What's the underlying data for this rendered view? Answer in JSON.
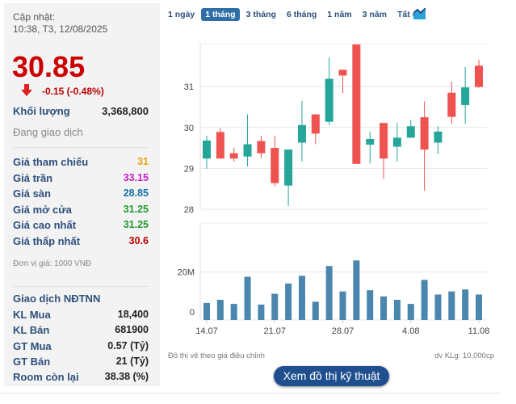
{
  "summary": {
    "update_label": "Cập nhật:",
    "update_time": "10:38, T3, 12/08/2025",
    "price": "30.85",
    "change": "-0.15 (-0.48%)",
    "volume_label": "Khối lượng",
    "volume": "3,368,800",
    "status": "Đang giao dịch"
  },
  "prices": [
    {
      "label": "Giá tham chiếu",
      "value": "31",
      "color": "#e8a317"
    },
    {
      "label": "Giá trần",
      "value": "33.15",
      "color": "#c51fc5"
    },
    {
      "label": "Giá sàn",
      "value": "28.85",
      "color": "#1b6fa8"
    },
    {
      "label": "Giá mở cửa",
      "value": "31.25",
      "color": "#1f9a2f"
    },
    {
      "label": "Giá cao nhất",
      "value": "31.25",
      "color": "#1f9a2f"
    },
    {
      "label": "Giá thấp nhất",
      "value": "30.6",
      "color": "#c00000"
    }
  ],
  "unit_note": "Đơn vị giá: 1000 VNĐ",
  "foreign": {
    "title": "Giao dịch NĐTNN",
    "rows": [
      {
        "label": "KL Mua",
        "value": "18,400"
      },
      {
        "label": "KL Bán",
        "value": "681900"
      },
      {
        "label": "GT Mua",
        "value": "0.57 (Tỷ)"
      },
      {
        "label": "GT Bán",
        "value": "21 (Tỷ)"
      },
      {
        "label": "Room còn lại",
        "value": "38.38 (%)"
      }
    ]
  },
  "ranges": [
    "1 ngày",
    "1 tháng",
    "3 tháng",
    "6 tháng",
    "1 năm",
    "3 năm",
    "Tất cả"
  ],
  "active_range": "1 tháng",
  "chart_note": "Đồ thị vẽ theo giá điều chỉnh",
  "volume_unit": "dv KLg: 10,000cp",
  "tech_button": "Xem đồ thị kỹ thuật",
  "colors": {
    "up": "#26a69a",
    "down": "#ef5350",
    "volume": "#4a86ad"
  },
  "chart_data": {
    "type": "candlestick",
    "price_ylim": [
      28,
      32.05
    ],
    "price_ticks": [
      "28",
      "29",
      "30",
      "31"
    ],
    "volume_ylim": [
      0,
      40.4
    ],
    "volume_ticks": [
      "0",
      "20M"
    ],
    "x_ticks": [
      {
        "index": 0,
        "label": "14.07"
      },
      {
        "index": 5,
        "label": "21.07"
      },
      {
        "index": 10,
        "label": "28.07"
      },
      {
        "index": 15,
        "label": "4.08"
      },
      {
        "index": 20,
        "label": "11.08"
      }
    ],
    "candles": [
      [
        29.24,
        29.8,
        28.99,
        29.68
      ],
      [
        29.89,
        29.98,
        29.24,
        29.24
      ],
      [
        29.37,
        29.51,
        29.17,
        29.24
      ],
      [
        29.29,
        30.32,
        29.05,
        29.59
      ],
      [
        29.67,
        29.8,
        29.25,
        29.37
      ],
      [
        29.5,
        29.8,
        28.56,
        28.64
      ],
      [
        28.58,
        29.46,
        28.08,
        29.46
      ],
      [
        29.63,
        30.65,
        29.17,
        30.06
      ],
      [
        30.32,
        30.32,
        29.59,
        29.85
      ],
      [
        30.14,
        31.72,
        30.06,
        31.19
      ],
      [
        31.41,
        31.41,
        30.84,
        31.27
      ],
      [
        32.03,
        32.03,
        29.11,
        29.11
      ],
      [
        29.58,
        29.9,
        29.12,
        29.72
      ],
      [
        30.11,
        30.11,
        28.74,
        29.24
      ],
      [
        29.53,
        30.11,
        29.17,
        29.75
      ],
      [
        29.75,
        30.19,
        29.75,
        30.03
      ],
      [
        30.25,
        30.64,
        28.45,
        29.46
      ],
      [
        29.63,
        30.03,
        29.35,
        29.9
      ],
      [
        30.85,
        31.12,
        30.09,
        30.26
      ],
      [
        30.55,
        31.48,
        30.09,
        30.98
      ],
      [
        31.51,
        31.66,
        30.97,
        30.99
      ]
    ],
    "candle_fields": [
      "open",
      "high",
      "low",
      "close"
    ],
    "volumes_millions": [
      7.1,
      8.4,
      6.7,
      18.0,
      6.4,
      10.9,
      15.2,
      18.4,
      7.6,
      22.5,
      11.9,
      24.8,
      12.4,
      9.8,
      8.4,
      6.7,
      16.7,
      10.6,
      11.9,
      12.7,
      10.6
    ]
  }
}
